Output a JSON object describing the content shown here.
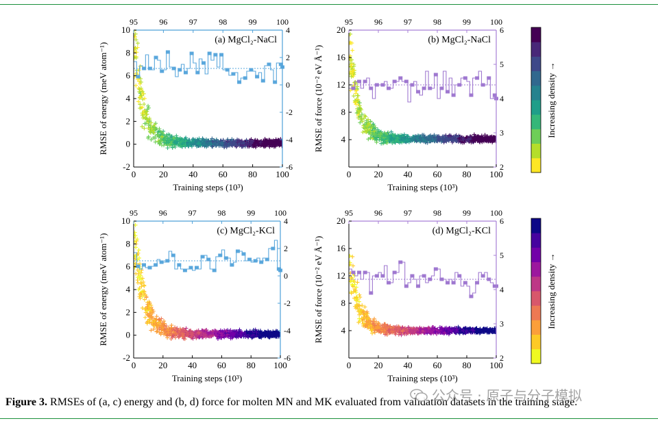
{
  "figure": {
    "caption_label": "Figure 3.",
    "caption_text": " RMSEs of (a, c) energy and (b, d) force for molten MN and MK evaluated from validation datasets in the training stage.",
    "watermark": "公众号 · 原子与分子模拟"
  },
  "colors": {
    "rule": "#1a8f3a",
    "energy_axis": "#4ea0d8",
    "energy_marker": "#5aa7dc",
    "force_axis": "#a77fd6",
    "force_marker": "#9f78d0",
    "viridis": [
      "#fde725",
      "#b5de2b",
      "#6ece58",
      "#35b779",
      "#1f9e89",
      "#26828e",
      "#31688e",
      "#3e4989",
      "#482878",
      "#440154"
    ],
    "plasma": [
      "#f0f921",
      "#fdca26",
      "#fb9f3a",
      "#ed7953",
      "#d8576b",
      "#bd3786",
      "#9c179e",
      "#7201a8",
      "#46039f",
      "#0d0887"
    ]
  },
  "chart_data": [
    {
      "panel": "a",
      "type": "scatter",
      "label": "(a) MgCl₂-NaCl",
      "xlabel": "Training steps (10³)",
      "ylabel": "RMSE of energy (meV atom⁻¹)",
      "xlim": [
        0,
        100
      ],
      "ylim": [
        -2,
        10
      ],
      "xticks": [
        "0",
        "20",
        "40",
        "60",
        "80",
        "100"
      ],
      "yticks": [
        "-2",
        "0",
        "2",
        "4",
        "6",
        "8",
        "10"
      ],
      "top_xlim": [
        95,
        100
      ],
      "top_xticks": [
        "95",
        "96",
        "97",
        "98",
        "99",
        "100"
      ],
      "right_ylim": [
        -6,
        4
      ],
      "right_yticks": [
        "-6",
        "-4",
        "-2",
        "0",
        "2",
        "4"
      ],
      "colormap": "viridis",
      "scatter_decay": {
        "initial": 9.5,
        "tau": 6,
        "floor": 0.1,
        "spread": 0.25
      },
      "step_series": {
        "x": [
          95.0,
          95.1,
          95.2,
          95.3,
          95.4,
          95.5,
          95.6,
          95.7,
          95.8,
          95.9,
          96.0,
          96.1,
          96.2,
          96.3,
          96.4,
          96.5,
          96.6,
          96.7,
          96.8,
          96.9,
          97.0,
          97.1,
          97.2,
          97.3,
          97.4,
          97.5,
          97.6,
          97.7,
          97.8,
          97.9,
          98.0,
          98.1,
          98.2,
          98.3,
          98.4,
          98.5,
          98.6,
          98.7,
          98.8,
          98.9,
          99.0,
          99.1,
          99.2,
          99.3,
          99.4,
          99.5,
          99.6,
          99.7,
          99.8,
          99.9,
          100.0
        ],
        "values": [
          1.7,
          0.6,
          1.4,
          1.2,
          2.2,
          1.2,
          1.1,
          2.0,
          1.8,
          1.0,
          1.1,
          2.4,
          1.3,
          1.2,
          0.6,
          1.1,
          1.5,
          0.9,
          1.2,
          2.3,
          1.6,
          0.9,
          1.9,
          1.6,
          0.8,
          2.3,
          1.8,
          2.2,
          1.3,
          2.2,
          1.1,
          1.1,
          0.7,
          0.8,
          0.9,
          0.2,
          0.5,
          0.5,
          1.0,
          1.1,
          1.0,
          0.6,
          0.9,
          0.3,
          1.4,
          1.5,
          1.1,
          0.2,
          1.6,
          1.5,
          1.3
        ],
        "mean": 1.2
      }
    },
    {
      "panel": "b",
      "type": "scatter",
      "label": "(b) MgCl₂-NaCl",
      "xlabel": "Training steps (10³)",
      "ylabel": "RMSE of force (10⁻² eV Å⁻¹)",
      "xlim": [
        0,
        100
      ],
      "ylim": [
        0,
        20
      ],
      "xticks": [
        "0",
        "20",
        "40",
        "60",
        "80",
        "100"
      ],
      "yticks": [
        "4",
        "8",
        "12",
        "16",
        "20"
      ],
      "top_xlim": [
        95,
        100
      ],
      "top_xticks": [
        "95",
        "96",
        "97",
        "98",
        "99",
        "100"
      ],
      "right_ylim": [
        2,
        6
      ],
      "right_yticks": [
        "2",
        "3",
        "4",
        "5",
        "6"
      ],
      "colormap": "viridis",
      "scatter_decay": {
        "initial": 18,
        "tau": 6,
        "floor": 4.1,
        "spread": 0.4
      },
      "step_series": {
        "x": [
          95.0,
          95.1,
          95.2,
          95.3,
          95.4,
          95.5,
          95.6,
          95.7,
          95.8,
          95.9,
          96.0,
          96.1,
          96.2,
          96.3,
          96.4,
          96.5,
          96.6,
          96.7,
          96.8,
          96.9,
          97.0,
          97.1,
          97.2,
          97.3,
          97.4,
          97.5,
          97.6,
          97.7,
          97.8,
          97.9,
          98.0,
          98.1,
          98.2,
          98.3,
          98.4,
          98.5,
          98.6,
          98.7,
          98.8,
          98.9,
          99.0,
          99.1,
          99.2,
          99.3,
          99.4,
          99.5,
          99.6,
          99.7,
          99.8,
          99.9,
          100.0
        ],
        "values": [
          4.3,
          4.3,
          4.5,
          4.5,
          4.3,
          4.5,
          4.6,
          4.3,
          4.0,
          4.4,
          4.4,
          4.4,
          4.5,
          4.3,
          4.3,
          4.5,
          4.5,
          4.6,
          4.5,
          4.5,
          3.9,
          4.4,
          4.5,
          4.2,
          4.1,
          4.3,
          4.8,
          4.3,
          4.3,
          4.7,
          4.0,
          4.3,
          4.8,
          4.2,
          4.6,
          4.1,
          4.4,
          4.4,
          4.6,
          4.6,
          4.5,
          4.1,
          4.6,
          4.6,
          4.8,
          4.4,
          4.4,
          4.6,
          4.0,
          4.1,
          4.0
        ],
        "mean": 4.4
      }
    },
    {
      "panel": "c",
      "type": "scatter",
      "label": "(c) MgCl₂-KCl",
      "xlabel": "Training steps (10³)",
      "ylabel": "RMSE of energy (meV atom⁻¹)",
      "xlim": [
        0,
        100
      ],
      "ylim": [
        -2,
        10
      ],
      "xticks": [
        "0",
        "20",
        "40",
        "60",
        "80",
        "100"
      ],
      "yticks": [
        "-2",
        "0",
        "2",
        "4",
        "6",
        "8",
        "10"
      ],
      "top_xlim": [
        95,
        100
      ],
      "top_xticks": [
        "95",
        "96",
        "97",
        "98",
        "99",
        "100"
      ],
      "right_ylim": [
        -6,
        4
      ],
      "right_yticks": [
        "-6",
        "-4",
        "-2",
        "0",
        "2",
        "4"
      ],
      "colormap": "plasma",
      "scatter_decay": {
        "initial": 9.5,
        "tau": 6.5,
        "floor": 0.1,
        "spread": 0.25
      },
      "step_series": {
        "x": [
          95.0,
          95.1,
          95.2,
          95.3,
          95.4,
          95.5,
          95.6,
          95.7,
          95.8,
          95.9,
          96.0,
          96.1,
          96.2,
          96.3,
          96.4,
          96.5,
          96.6,
          96.7,
          96.8,
          96.9,
          97.0,
          97.1,
          97.2,
          97.3,
          97.4,
          97.5,
          97.6,
          97.7,
          97.8,
          97.9,
          98.0,
          98.1,
          98.2,
          98.3,
          98.4,
          98.5,
          98.6,
          98.7,
          98.8,
          98.9,
          99.0,
          99.1,
          99.2,
          99.3,
          99.4,
          99.5,
          99.6,
          99.7,
          99.8,
          99.9,
          100.0
        ],
        "values": [
          1.7,
          0.7,
          0.5,
          0.8,
          0.6,
          0.6,
          0.7,
          0.8,
          1.2,
          1.0,
          1.0,
          1.1,
          1.8,
          1.5,
          0.5,
          0.8,
          0.5,
          0.4,
          0.5,
          0.6,
          0.4,
          0.6,
          0.5,
          1.4,
          1.5,
          1.2,
          0.5,
          0.4,
          1.4,
          1.5,
          1.9,
          1.3,
          1.3,
          0.8,
          1.0,
          1.8,
          1.8,
          1.6,
          1.1,
          1.2,
          1.0,
          1.1,
          1.3,
          1.0,
          1.3,
          1.2,
          2.0,
          2.0,
          2.6,
          0.5,
          0.4
        ],
        "mean": 1.1
      }
    },
    {
      "panel": "d",
      "type": "scatter",
      "label": "(d) MgCl₂-KCl",
      "xlabel": "Training steps (10³)",
      "ylabel": "RMSE of force (10⁻² eV Å⁻¹)",
      "xlim": [
        0,
        100
      ],
      "ylim": [
        0,
        20
      ],
      "xticks": [
        "0",
        "20",
        "40",
        "60",
        "80",
        "100"
      ],
      "yticks": [
        "4",
        "8",
        "12",
        "16",
        "20"
      ],
      "top_xlim": [
        95,
        100
      ],
      "top_xticks": [
        "95",
        "96",
        "97",
        "98",
        "99",
        "100"
      ],
      "right_ylim": [
        2,
        6
      ],
      "right_yticks": [
        "2",
        "3",
        "4",
        "5",
        "6"
      ],
      "colormap": "plasma",
      "scatter_decay": {
        "initial": 15,
        "tau": 6,
        "floor": 4.0,
        "spread": 0.35
      },
      "step_series": {
        "x": [
          95.0,
          95.1,
          95.2,
          95.3,
          95.4,
          95.5,
          95.6,
          95.7,
          95.8,
          95.9,
          96.0,
          96.1,
          96.2,
          96.3,
          96.4,
          96.5,
          96.6,
          96.7,
          96.8,
          96.9,
          97.0,
          97.1,
          97.2,
          97.3,
          97.4,
          97.5,
          97.6,
          97.7,
          97.8,
          97.9,
          98.0,
          98.1,
          98.2,
          98.3,
          98.4,
          98.5,
          98.6,
          98.7,
          98.8,
          98.9,
          99.0,
          99.1,
          99.2,
          99.3,
          99.4,
          99.5,
          99.6,
          99.7,
          99.8,
          99.9,
          100.0
        ],
        "values": [
          4.6,
          4.5,
          4.4,
          4.5,
          4.3,
          4.5,
          4.5,
          3.9,
          4.4,
          4.4,
          4.5,
          4.4,
          4.7,
          4.2,
          4.2,
          4.5,
          4.5,
          4.8,
          4.8,
          4.1,
          4.2,
          4.4,
          4.3,
          4.1,
          4.4,
          4.4,
          4.2,
          4.3,
          4.4,
          4.6,
          4.6,
          4.3,
          4.3,
          4.2,
          4.3,
          4.2,
          4.5,
          4.4,
          4.1,
          4.2,
          4.1,
          3.8,
          3.9,
          4.2,
          4.5,
          4.4,
          4.5,
          4.3,
          4.2,
          4.1,
          4.1
        ],
        "mean": 4.3
      }
    }
  ],
  "colorbars": [
    {
      "name": "top",
      "label": "Increasing density →",
      "colormap": "viridis"
    },
    {
      "name": "bottom",
      "label": "Increasing density →",
      "colormap": "plasma"
    }
  ]
}
